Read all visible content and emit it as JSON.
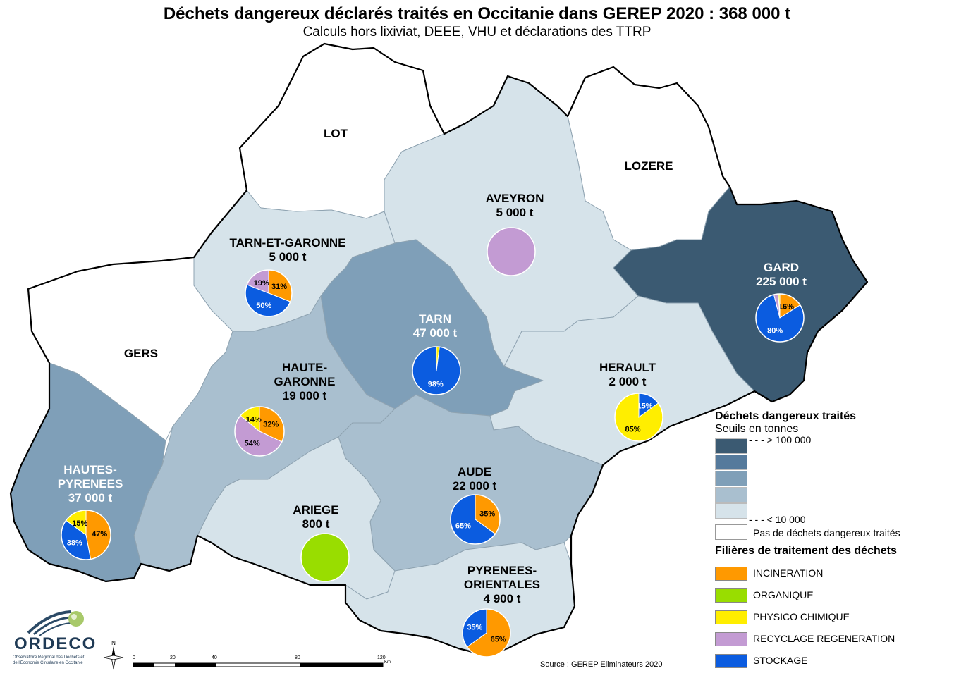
{
  "title": "Déchets dangereux déclarés traités en Occitanie dans GEREP 2020 : 368 000 t",
  "subtitle": "Calculs hors lixiviat, DEEE, VHU et déclarations des TTRP",
  "colors": {
    "class_white": "#ffffff",
    "class_1": "#d6e3ea",
    "class_2": "#a9bfcf",
    "class_3": "#7f9fb8",
    "class_4": "#557a9c",
    "class_5": "#3b5a72",
    "incineration": "#ff9900",
    "organique": "#99dd00",
    "physico_chimique": "#ffee00",
    "recyclage_regeneration": "#c39bd3",
    "stockage": "#0b5ce0"
  },
  "departments": [
    {
      "name": "LOT",
      "tonnage": "",
      "class": "class_white"
    },
    {
      "name": "LOZERE",
      "tonnage": "",
      "class": "class_white"
    },
    {
      "name": "GERS",
      "tonnage": "",
      "class": "class_white"
    },
    {
      "name": "AVEYRON",
      "tonnage": "5 000 t",
      "class": "class_1",
      "pie": [
        {
          "cat": "recyclage_regeneration",
          "value": 100,
          "label": ""
        }
      ]
    },
    {
      "name": "TARN-ET-GARONNE",
      "tonnage": "5 000 t",
      "class": "class_1",
      "pie": [
        {
          "cat": "incineration",
          "value": 31,
          "label": "31%"
        },
        {
          "cat": "stockage",
          "value": 50,
          "label": "50%"
        },
        {
          "cat": "recyclage_regeneration",
          "value": 19,
          "label": "19%"
        }
      ]
    },
    {
      "name": "TARN",
      "tonnage": "47 000 t",
      "class": "class_3",
      "pie": [
        {
          "cat": "physico_chimique",
          "value": 2,
          "label": ""
        },
        {
          "cat": "stockage",
          "value": 98,
          "label": "98%"
        }
      ]
    },
    {
      "name": "GARD",
      "tonnage": "225 000 t",
      "class": "class_5",
      "pie": [
        {
          "cat": "incineration",
          "value": 16,
          "label": "16%"
        },
        {
          "cat": "stockage",
          "value": 80,
          "label": "80%"
        },
        {
          "cat": "recyclage_regeneration",
          "value": 3,
          "label": ""
        },
        {
          "cat": "physico_chimique",
          "value": 1,
          "label": ""
        }
      ]
    },
    {
      "name": "HAUTE-\nGARONNE",
      "tonnage": "19 000 t",
      "class": "class_2",
      "pie": [
        {
          "cat": "incineration",
          "value": 32,
          "label": "32%"
        },
        {
          "cat": "recyclage_regeneration",
          "value": 54,
          "label": "54%"
        },
        {
          "cat": "physico_chimique",
          "value": 14,
          "label": "14%"
        }
      ]
    },
    {
      "name": "HERAULT",
      "tonnage": "2 000 t",
      "class": "class_1",
      "pie": [
        {
          "cat": "stockage",
          "value": 15,
          "label": "15%"
        },
        {
          "cat": "physico_chimique",
          "value": 85,
          "label": "85%"
        }
      ]
    },
    {
      "name": "HAUTES-\nPYRENEES",
      "tonnage": "37 000 t",
      "class": "class_3",
      "pie": [
        {
          "cat": "incineration",
          "value": 47,
          "label": "47%"
        },
        {
          "cat": "stockage",
          "value": 38,
          "label": "38%"
        },
        {
          "cat": "physico_chimique",
          "value": 15,
          "label": "15%"
        }
      ]
    },
    {
      "name": "AUDE",
      "tonnage": "22 000 t",
      "class": "class_2",
      "pie": [
        {
          "cat": "incineration",
          "value": 35,
          "label": "35%"
        },
        {
          "cat": "stockage",
          "value": 65,
          "label": "65%"
        }
      ]
    },
    {
      "name": "ARIEGE",
      "tonnage": "800 t",
      "class": "class_1",
      "pie": [
        {
          "cat": "organique",
          "value": 100,
          "label": ""
        }
      ]
    },
    {
      "name": "PYRENEES-\nORIENTALES",
      "tonnage": "4 900 t",
      "class": "class_1",
      "pie": [
        {
          "cat": "incineration",
          "value": 65,
          "label": "65%"
        },
        {
          "cat": "stockage",
          "value": 35,
          "label": "35%"
        }
      ]
    }
  ],
  "legend": {
    "title": "Déchets dangereux traités",
    "subtitle": "Seuils en tonnes",
    "top_label": "- - - > 100 000",
    "bottom_label": "- - - < 10 000",
    "none_label": "Pas de déchets dangereux traités",
    "filieres_title": "Filières de traitement des déchets",
    "filieres": [
      {
        "key": "incineration",
        "label": "INCINERATION"
      },
      {
        "key": "organique",
        "label": "ORGANIQUE"
      },
      {
        "key": "physico_chimique",
        "label": "PHYSICO CHIMIQUE"
      },
      {
        "key": "recyclage_regeneration",
        "label": "RECYCLAGE REGENERATION"
      },
      {
        "key": "stockage",
        "label": "STOCKAGE"
      }
    ]
  },
  "scale_bar": {
    "ticks": [
      "0",
      "20",
      "40",
      "80",
      "120"
    ],
    "unit": "Km"
  },
  "north_label": "N",
  "source": "Source : GEREP Eliminateurs 2020",
  "logo": {
    "name": "ORDECO",
    "line1": "Observatoire Régional des Déchets et",
    "line2": "de l'Économie Circulaire en Occitanie"
  }
}
